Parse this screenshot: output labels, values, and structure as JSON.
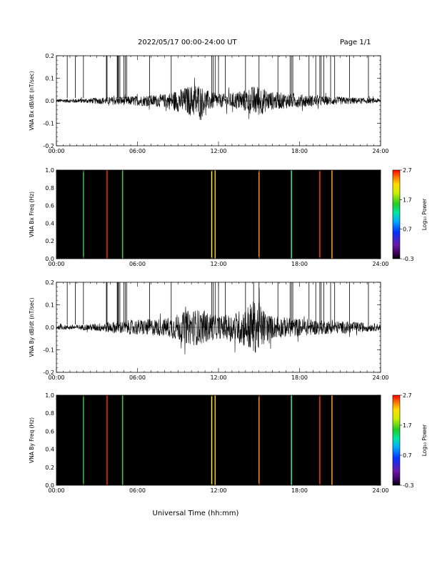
{
  "header": {
    "title": "2022/05/17  00:00-24:00 UT",
    "page": "Page 1/1"
  },
  "xlabel": "Universal Time (hh:mm)",
  "colorbar": {
    "label": "Log₁₀ Power",
    "ticks": [
      "2.7",
      "1.7",
      "0.7",
      "-0.3"
    ],
    "range": [
      -0.3,
      2.7
    ]
  },
  "chart_data": [
    {
      "type": "line",
      "ylabel": "VNA Bx dB/dt (nT/sec)",
      "ylim": [
        -0.2,
        0.2
      ],
      "yticks": [
        "0.2",
        "0.1",
        "0.0",
        "-0.1",
        "-0.2"
      ],
      "xticks": [
        "00:00",
        "06:00",
        "12:00",
        "18:00",
        "24:00"
      ],
      "xlim_hours": [
        0,
        24
      ],
      "spike_hours": [
        0.8,
        1.4,
        2.0,
        3.7,
        3.75,
        4.5,
        4.55,
        4.6,
        4.7,
        5.0,
        5.1,
        5.2,
        6.9,
        8.5,
        11.5,
        11.6,
        11.75,
        12.0,
        12.5,
        14.0,
        15.0,
        16.4,
        17.3,
        17.4,
        17.5,
        18.7,
        19.2,
        19.5,
        19.6,
        19.8,
        20.3,
        20.6,
        21.7,
        23.1
      ],
      "series": [
        {
          "hours": [
            0,
            2,
            4,
            6,
            8,
            9,
            10,
            10.5,
            11,
            12,
            13,
            14,
            14.5,
            15,
            15.5,
            16,
            17,
            18,
            20,
            22,
            24
          ],
          "amplitude": [
            0.008,
            0.01,
            0.018,
            0.022,
            0.03,
            0.05,
            0.07,
            0.08,
            0.05,
            0.03,
            0.035,
            0.05,
            0.065,
            0.07,
            0.05,
            0.04,
            0.035,
            0.03,
            0.02,
            0.015,
            0.01
          ]
        }
      ]
    },
    {
      "type": "heatmap",
      "ylabel": "VNA Bx Freq (Hz)",
      "ylim": [
        0,
        1.0
      ],
      "yticks": [
        "1.0",
        "0.8",
        "0.6",
        "0.4",
        "0.2",
        "0.0"
      ],
      "xticks": [
        "00:00",
        "06:00",
        "12:00",
        "18:00",
        "24:00"
      ],
      "xlim_hours": [
        0,
        24
      ],
      "lines": [
        {
          "hour": 2.0,
          "color": "#39c33c"
        },
        {
          "hour": 3.75,
          "color": "#ff2a00"
        },
        {
          "hour": 4.9,
          "color": "#4ec832"
        },
        {
          "hour": 11.5,
          "color": "#ffef2d"
        },
        {
          "hour": 11.75,
          "color": "#ffcc00"
        },
        {
          "hour": 15.0,
          "color": "#ff8c1a"
        },
        {
          "hour": 17.4,
          "color": "#2ee8b0"
        },
        {
          "hour": 19.5,
          "color": "#ff3b00"
        },
        {
          "hour": 20.4,
          "color": "#ffa220"
        }
      ]
    },
    {
      "type": "line",
      "ylabel": "VNA By dB/dt (nT/sec)",
      "ylim": [
        -0.2,
        0.2
      ],
      "yticks": [
        "0.2",
        "0.1",
        "0.0",
        "-0.1",
        "-0.2"
      ],
      "xticks": [
        "00:00",
        "06:00",
        "12:00",
        "18:00",
        "24:00"
      ],
      "xlim_hours": [
        0,
        24
      ],
      "spike_hours": [
        0.8,
        1.4,
        2.0,
        3.7,
        3.75,
        4.5,
        4.55,
        4.6,
        4.7,
        5.0,
        5.1,
        5.2,
        6.9,
        8.5,
        11.5,
        11.6,
        11.75,
        12.0,
        12.5,
        14.0,
        14.6,
        15.0,
        16.4,
        17.3,
        17.4,
        17.5,
        18.7,
        19.2,
        19.5,
        19.6,
        19.8,
        20.3,
        20.6,
        21.7,
        23.1
      ],
      "series": [
        {
          "hours": [
            0,
            2,
            4,
            6,
            8,
            9,
            10,
            10.5,
            11,
            12,
            13,
            14,
            14.5,
            15,
            15.5,
            16,
            17,
            18,
            20,
            22,
            24
          ],
          "amplitude": [
            0.01,
            0.012,
            0.025,
            0.035,
            0.04,
            0.06,
            0.08,
            0.08,
            0.07,
            0.05,
            0.06,
            0.09,
            0.12,
            0.11,
            0.07,
            0.05,
            0.045,
            0.04,
            0.03,
            0.025,
            0.015
          ]
        }
      ]
    },
    {
      "type": "heatmap",
      "ylabel": "VNA By Freq (Hz)",
      "ylim": [
        0,
        1.0
      ],
      "yticks": [
        "1.0",
        "0.8",
        "0.6",
        "0.4",
        "0.2",
        "0.0"
      ],
      "xticks": [
        "00:00",
        "06:00",
        "12:00",
        "18:00",
        "24:00"
      ],
      "xlim_hours": [
        0,
        24
      ],
      "lines": [
        {
          "hour": 2.0,
          "color": "#39c33c"
        },
        {
          "hour": 3.75,
          "color": "#ff2a00"
        },
        {
          "hour": 4.9,
          "color": "#4ec832"
        },
        {
          "hour": 11.5,
          "color": "#ffef2d"
        },
        {
          "hour": 11.75,
          "color": "#ffcc00"
        },
        {
          "hour": 15.0,
          "color": "#ff8c1a"
        },
        {
          "hour": 17.4,
          "color": "#2ee8b0"
        },
        {
          "hour": 19.5,
          "color": "#ff3b00"
        },
        {
          "hour": 20.4,
          "color": "#ffa220"
        }
      ]
    }
  ]
}
